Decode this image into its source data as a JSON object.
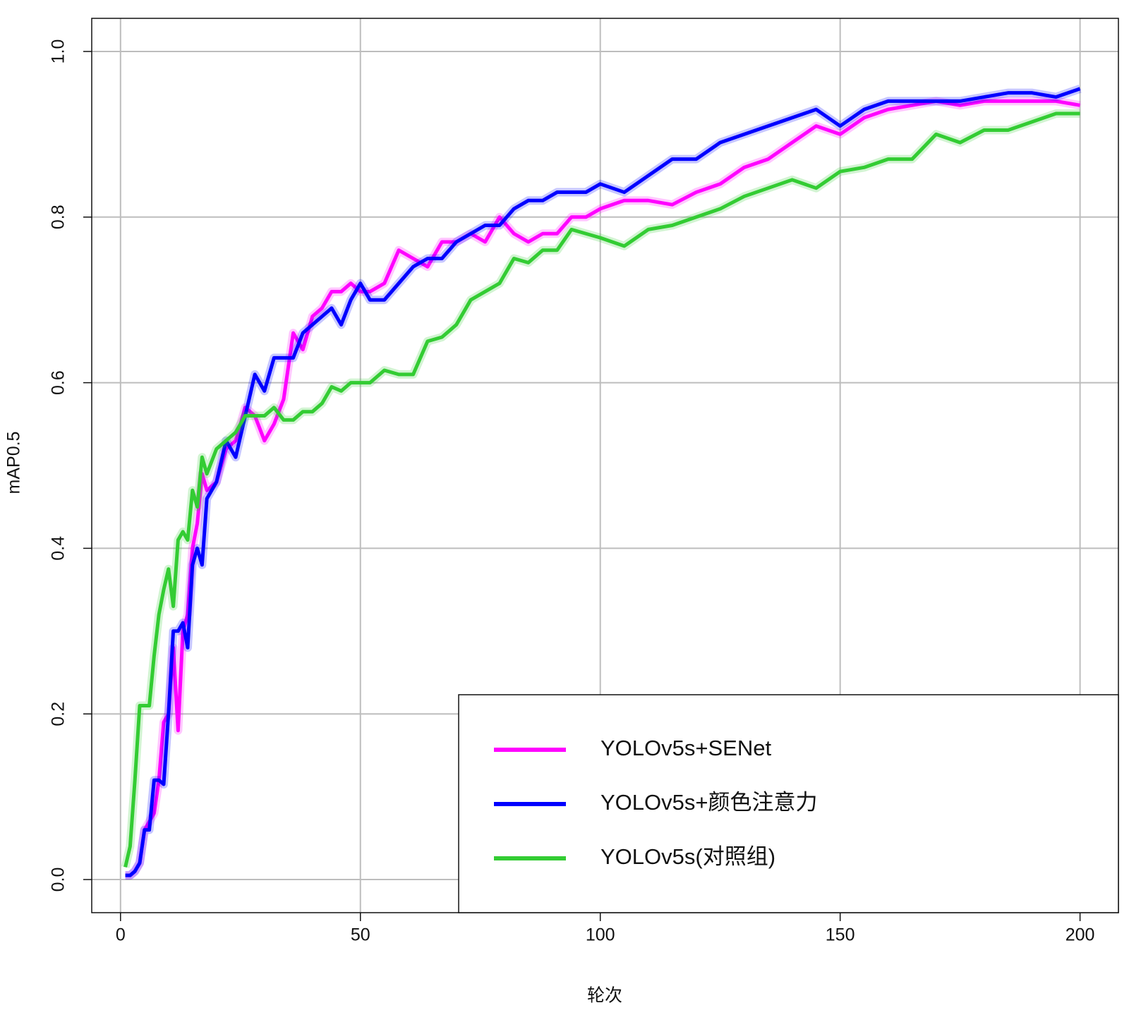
{
  "chart_data": {
    "type": "line",
    "x_label": "轮次",
    "y_label": "mAP0.5",
    "x": [
      1,
      2,
      3,
      4,
      5,
      6,
      7,
      8,
      9,
      10,
      11,
      12,
      13,
      14,
      15,
      16,
      17,
      18,
      20,
      22,
      24,
      26,
      28,
      30,
      32,
      34,
      36,
      38,
      40,
      42,
      44,
      46,
      48,
      50,
      52,
      55,
      58,
      61,
      64,
      67,
      70,
      73,
      76,
      79,
      82,
      85,
      88,
      91,
      94,
      97,
      100,
      105,
      110,
      115,
      120,
      125,
      130,
      135,
      140,
      145,
      150,
      155,
      160,
      165,
      170,
      175,
      180,
      185,
      190,
      195,
      200
    ],
    "series": [
      {
        "name": "YOLOv5s+SENet",
        "color": "#ff00ff",
        "values": [
          0.005,
          0.005,
          0.01,
          0.02,
          0.06,
          0.07,
          0.08,
          0.12,
          0.19,
          0.2,
          0.28,
          0.18,
          0.3,
          0.32,
          0.4,
          0.43,
          0.49,
          0.47,
          0.48,
          0.52,
          0.53,
          0.57,
          0.56,
          0.53,
          0.55,
          0.58,
          0.66,
          0.64,
          0.68,
          0.69,
          0.71,
          0.71,
          0.72,
          0.71,
          0.71,
          0.72,
          0.76,
          0.75,
          0.74,
          0.77,
          0.77,
          0.78,
          0.77,
          0.8,
          0.78,
          0.77,
          0.78,
          0.78,
          0.8,
          0.8,
          0.81,
          0.82,
          0.82,
          0.815,
          0.83,
          0.84,
          0.86,
          0.87,
          0.89,
          0.91,
          0.9,
          0.92,
          0.93,
          0.935,
          0.94,
          0.935,
          0.94,
          0.94,
          0.94,
          0.94,
          0.935
        ]
      },
      {
        "name": "YOLOv5s+颜色注意力",
        "color": "#0000ff",
        "values": [
          0.005,
          0.005,
          0.01,
          0.02,
          0.06,
          0.06,
          0.12,
          0.12,
          0.115,
          0.2,
          0.3,
          0.3,
          0.31,
          0.28,
          0.38,
          0.4,
          0.38,
          0.46,
          0.48,
          0.53,
          0.51,
          0.56,
          0.61,
          0.59,
          0.63,
          0.63,
          0.63,
          0.66,
          0.67,
          0.68,
          0.69,
          0.67,
          0.7,
          0.72,
          0.7,
          0.7,
          0.72,
          0.74,
          0.75,
          0.75,
          0.77,
          0.78,
          0.79,
          0.79,
          0.81,
          0.82,
          0.82,
          0.83,
          0.83,
          0.83,
          0.84,
          0.83,
          0.85,
          0.87,
          0.87,
          0.89,
          0.9,
          0.91,
          0.92,
          0.93,
          0.91,
          0.93,
          0.94,
          0.94,
          0.94,
          0.94,
          0.945,
          0.95,
          0.95,
          0.945,
          0.955
        ]
      },
      {
        "name": "YOLOv5s(对照组)",
        "color": "#33cc33",
        "values": [
          0.015,
          0.04,
          0.12,
          0.21,
          0.21,
          0.21,
          0.27,
          0.32,
          0.35,
          0.375,
          0.33,
          0.41,
          0.42,
          0.41,
          0.47,
          0.45,
          0.51,
          0.49,
          0.52,
          0.53,
          0.54,
          0.56,
          0.56,
          0.56,
          0.57,
          0.555,
          0.555,
          0.565,
          0.565,
          0.575,
          0.595,
          0.59,
          0.6,
          0.6,
          0.6,
          0.615,
          0.61,
          0.61,
          0.65,
          0.655,
          0.67,
          0.7,
          0.71,
          0.72,
          0.75,
          0.745,
          0.76,
          0.76,
          0.785,
          0.78,
          0.775,
          0.765,
          0.785,
          0.79,
          0.8,
          0.81,
          0.825,
          0.835,
          0.845,
          0.835,
          0.855,
          0.86,
          0.87,
          0.87,
          0.9,
          0.89,
          0.905,
          0.905,
          0.915,
          0.925,
          0.925
        ]
      }
    ],
    "xlim": [
      -6,
      208
    ],
    "ylim": [
      -0.04,
      1.04
    ],
    "xticks": [
      0,
      50,
      100,
      150,
      200
    ],
    "yticks": [
      {
        "value": 0,
        "label": "0.0"
      },
      0.2,
      0.4,
      0.6,
      0.8,
      {
        "value": 1,
        "label": "1.0"
      }
    ],
    "grid": true,
    "legend": "bottomright"
  }
}
